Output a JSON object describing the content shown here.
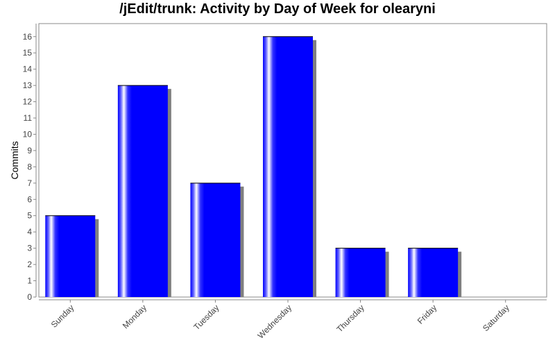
{
  "chart_data": {
    "type": "bar",
    "title": "/jEdit/trunk: Activity by Day of Week for olearyni",
    "xlabel": "",
    "ylabel": "Commits",
    "categories": [
      "Sunday",
      "Monday",
      "Tuesday",
      "Wednesday",
      "Thursday",
      "Friday",
      "Saturday"
    ],
    "values": [
      5,
      13,
      7,
      16,
      3,
      3,
      0
    ],
    "ylim": [
      0,
      16.8
    ],
    "yticks": [
      0,
      1,
      2,
      3,
      4,
      5,
      6,
      7,
      8,
      9,
      10,
      11,
      12,
      13,
      14,
      15,
      16
    ],
    "grid": false,
    "legend": "none",
    "colors": {
      "bar": "#0000ff",
      "shadow": "#808080",
      "axis": "#888888"
    }
  }
}
